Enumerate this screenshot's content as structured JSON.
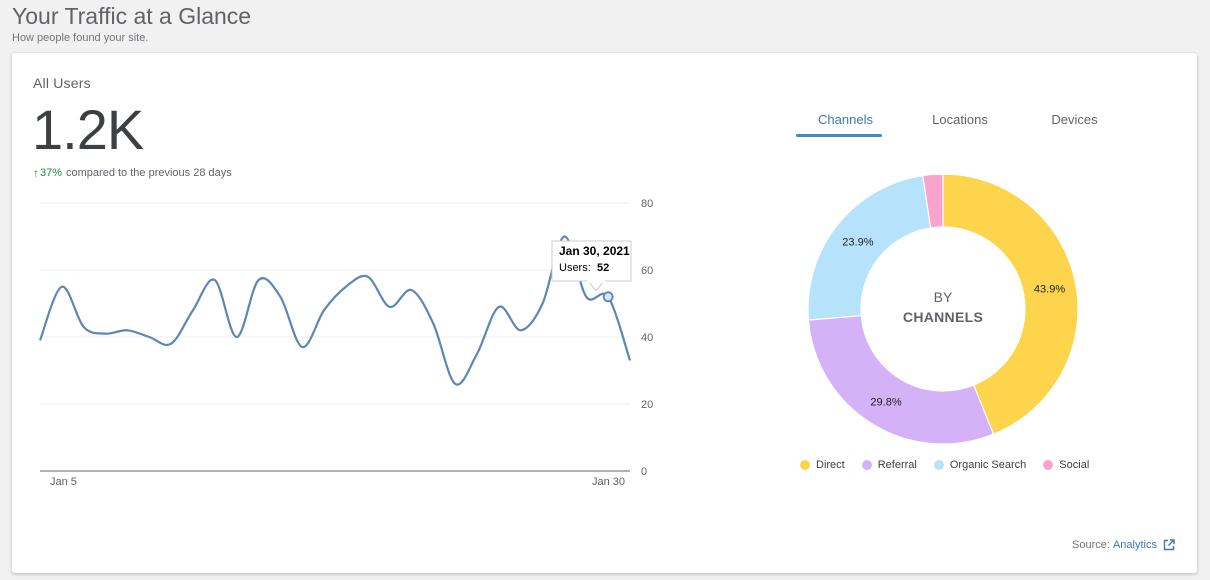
{
  "header": {
    "title": "Your Traffic at a Glance",
    "subtitle": "How people found your site."
  },
  "metric": {
    "label": "All Users",
    "value": "1.2K",
    "change_pct": "37%",
    "change_text": "compared to the previous 28 days",
    "trend_icon": "arrow-up-icon"
  },
  "tabs": [
    {
      "label": "Channels",
      "active": true
    },
    {
      "label": "Locations",
      "active": false
    },
    {
      "label": "Devices",
      "active": false
    }
  ],
  "donut_center": {
    "line1": "BY",
    "line2": "CHANNELS"
  },
  "source": {
    "label": "Source:",
    "link": "Analytics",
    "icon": "external-link-icon"
  },
  "colors": {
    "line": "#5b86b5",
    "direct": "#fdd54c",
    "referral": "#d5b1f7",
    "organic": "#b6e3fb",
    "social": "#f8a4cf"
  },
  "chart_data": [
    {
      "type": "line",
      "x_tick_labels": [
        "Jan 5",
        "Jan 30"
      ],
      "y_ticks": [
        0,
        20,
        40,
        60,
        80
      ],
      "ylim": [
        0,
        80
      ],
      "y_axis_position": "right",
      "grid": true,
      "series": [
        {
          "values": [
            39,
            55,
            43,
            41,
            42,
            40,
            38,
            48,
            57,
            40,
            57,
            52,
            37,
            48,
            55,
            58,
            49,
            54,
            44,
            26,
            35,
            49,
            42,
            50,
            70,
            52,
            52,
            33
          ]
        }
      ],
      "tooltip": {
        "date": "Jan 30, 2021",
        "label": "Users:",
        "value": "52",
        "point_index": 26
      }
    },
    {
      "type": "pie",
      "donut": true,
      "slices": [
        {
          "name": "Direct",
          "value": 43.9,
          "label": "43.9%"
        },
        {
          "name": "Referral",
          "value": 29.8,
          "label": "29.8%"
        },
        {
          "name": "Organic Search",
          "value": 23.9,
          "label": "23.9%"
        },
        {
          "name": "Social",
          "value": 2.4,
          "label": ""
        }
      ],
      "legend_position": "bottom"
    }
  ]
}
